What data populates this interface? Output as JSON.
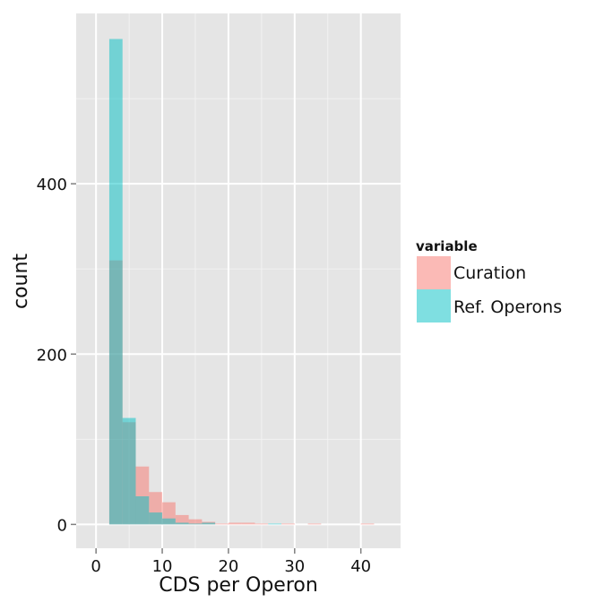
{
  "chart_data": {
    "type": "bar",
    "xlabel": "CDS per Operon",
    "ylabel": "count",
    "xlim": [
      -3,
      46
    ],
    "ylim": [
      -28,
      600
    ],
    "x_ticks": [
      0,
      10,
      20,
      30,
      40
    ],
    "y_ticks": [
      0,
      200,
      400
    ],
    "x_tick_labels": [
      "0",
      "10",
      "20",
      "30",
      "40"
    ],
    "y_tick_labels": [
      "0",
      "200",
      "400"
    ],
    "grid": true,
    "legend_position": "right",
    "legend_title": "variable",
    "bin_width": 2,
    "series": [
      {
        "name": "Curation",
        "color": "#F8766D",
        "bins": [
          [
            2,
            310
          ],
          [
            4,
            120
          ],
          [
            6,
            68
          ],
          [
            8,
            38
          ],
          [
            10,
            26
          ],
          [
            12,
            11
          ],
          [
            14,
            6
          ],
          [
            16,
            3
          ],
          [
            18,
            1
          ],
          [
            20,
            2
          ],
          [
            22,
            2
          ],
          [
            24,
            1
          ],
          [
            28,
            1
          ],
          [
            32,
            1
          ],
          [
            40,
            1
          ]
        ]
      },
      {
        "name": "Ref. Operons",
        "color": "#00BFC4",
        "bins": [
          [
            2,
            570
          ],
          [
            4,
            125
          ],
          [
            6,
            33
          ],
          [
            8,
            14
          ],
          [
            10,
            7
          ],
          [
            12,
            2
          ],
          [
            14,
            1
          ],
          [
            16,
            2
          ],
          [
            26,
            1
          ]
        ]
      }
    ]
  }
}
